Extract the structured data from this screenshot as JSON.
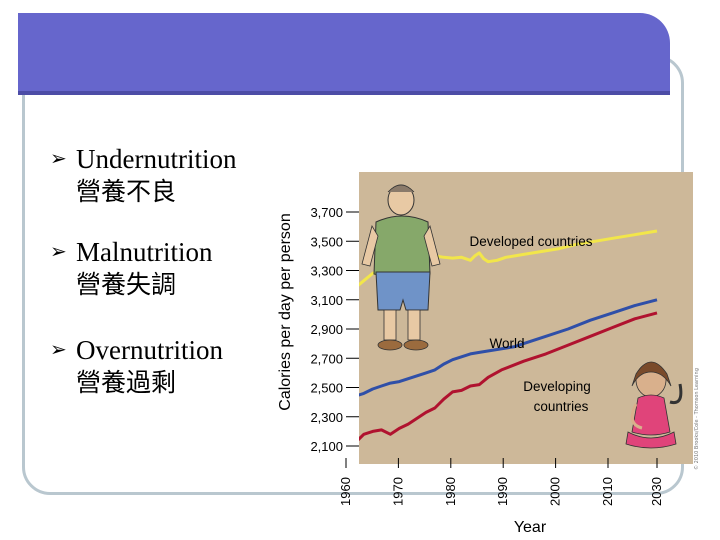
{
  "bullets": [
    {
      "marker": "➢",
      "en": "Undernutrition",
      "zh": "營養不良"
    },
    {
      "marker": "➢",
      "en": "Malnutrition",
      "zh": "營養失調"
    },
    {
      "marker": "➢",
      "en": "Overnutrition",
      "zh": "營養過剩"
    }
  ],
  "icons": [
    "overweight-man-icon",
    "thin-child-icon"
  ],
  "chart_data": {
    "type": "line",
    "xlabel": "Year",
    "ylabel": "Calories per day per person",
    "x_ticks": [
      "1960",
      "1970",
      "1980",
      "1990",
      "2000",
      "2010",
      "2030"
    ],
    "y_ticks": [
      "3,700",
      "3,500",
      "3,300",
      "3,100",
      "2,900",
      "2,700",
      "2,500",
      "2,300",
      "2,100"
    ],
    "ylim": [
      2100,
      3800
    ],
    "xlim": [
      1960,
      2030
    ],
    "credit": "© 2010 Brooks/Cole - Thomson Learning",
    "series": [
      {
        "name": "Developed countries",
        "color": "#f2e64a",
        "x": [
          1960,
          1962,
          1964,
          1966,
          1968,
          1970,
          1972,
          1974,
          1976,
          1978,
          1980,
          1982,
          1984,
          1986,
          1988,
          1989,
          1990,
          1991,
          1992,
          1994,
          1996,
          1998,
          2000,
          2004,
          2008,
          2012,
          2016,
          2020,
          2025,
          2030
        ],
        "y": [
          3130,
          3180,
          3230,
          3280,
          3310,
          3330,
          3340,
          3350,
          3370,
          3390,
          3400,
          3390,
          3385,
          3390,
          3370,
          3400,
          3420,
          3380,
          3360,
          3370,
          3390,
          3400,
          3410,
          3430,
          3450,
          3480,
          3500,
          3520,
          3545,
          3570
        ]
      },
      {
        "name": "World",
        "color": "#2f4fa8",
        "x": [
          1960,
          1962,
          1964,
          1966,
          1968,
          1970,
          1972,
          1974,
          1976,
          1978,
          1980,
          1982,
          1984,
          1986,
          1988,
          1990,
          1994,
          1998,
          2000,
          2005,
          2010,
          2015,
          2020,
          2025,
          2030
        ],
        "y": [
          2410,
          2440,
          2460,
          2490,
          2510,
          2530,
          2540,
          2560,
          2580,
          2600,
          2620,
          2660,
          2690,
          2710,
          2730,
          2740,
          2760,
          2780,
          2800,
          2850,
          2900,
          2960,
          3010,
          3060,
          3100
        ]
      },
      {
        "name": "Developing countries",
        "color": "#b0122f",
        "x": [
          1960,
          1962,
          1964,
          1966,
          1968,
          1970,
          1972,
          1974,
          1976,
          1978,
          1980,
          1982,
          1984,
          1986,
          1988,
          1990,
          1992,
          1995,
          2000,
          2005,
          2010,
          2015,
          2020,
          2025,
          2030
        ],
        "y": [
          2160,
          2120,
          2180,
          2200,
          2210,
          2180,
          2220,
          2250,
          2290,
          2330,
          2360,
          2420,
          2470,
          2480,
          2510,
          2520,
          2570,
          2620,
          2680,
          2730,
          2790,
          2850,
          2910,
          2970,
          3010
        ]
      }
    ],
    "series_label_text": {
      "developed": "Developed countries",
      "world": "World",
      "developing_line1": "Developing",
      "developing_line2": "countries"
    }
  }
}
